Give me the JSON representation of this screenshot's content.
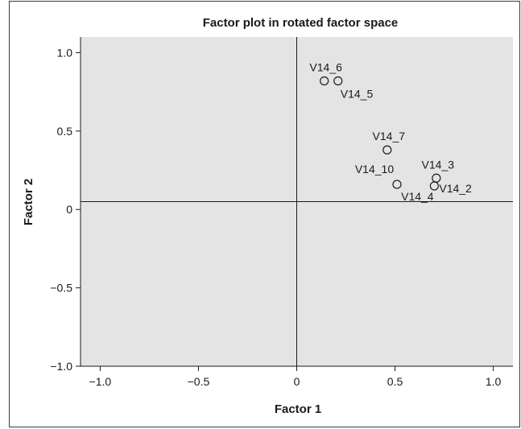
{
  "chart_data": {
    "type": "scatter",
    "title": "Factor plot in rotated factor space",
    "xlabel": "Factor 1",
    "ylabel": "Factor 2",
    "xlim": [
      -1.1,
      1.1
    ],
    "ylim": [
      -1.0,
      1.1
    ],
    "x_ticks": [
      -1.0,
      -0.5,
      0,
      0.5,
      1.0
    ],
    "x_tick_labels": [
      "−1.0",
      "−0.5",
      "0",
      "0.5",
      "1.0"
    ],
    "y_ticks": [
      -1.0,
      -0.5,
      0,
      0.5,
      1.0
    ],
    "y_tick_labels": [
      "−1.0",
      "−0.5",
      "0",
      "0.5",
      "1.0"
    ],
    "grid": false,
    "reference_lines": {
      "x": 0,
      "y": 0.05
    },
    "plot_background": "#e4e4e4",
    "marker_color": "#1a1a1a",
    "points": [
      {
        "label": "V14_6",
        "x": 0.14,
        "y": 0.82,
        "label_anchor": "above"
      },
      {
        "label": "V14_5",
        "x": 0.21,
        "y": 0.82,
        "label_anchor": "below-right"
      },
      {
        "label": "V14_7",
        "x": 0.46,
        "y": 0.38,
        "label_anchor": "above"
      },
      {
        "label": "V14_10",
        "x": 0.51,
        "y": 0.16,
        "label_anchor": "above-left"
      },
      {
        "label": "V14_3",
        "x": 0.71,
        "y": 0.2,
        "label_anchor": "above"
      },
      {
        "label": "V14_2",
        "x": 0.7,
        "y": 0.15,
        "label_anchor": "right"
      },
      {
        "label": "V14_4",
        "x": 0.7,
        "y": 0.15,
        "label_anchor": "below-left"
      }
    ]
  }
}
